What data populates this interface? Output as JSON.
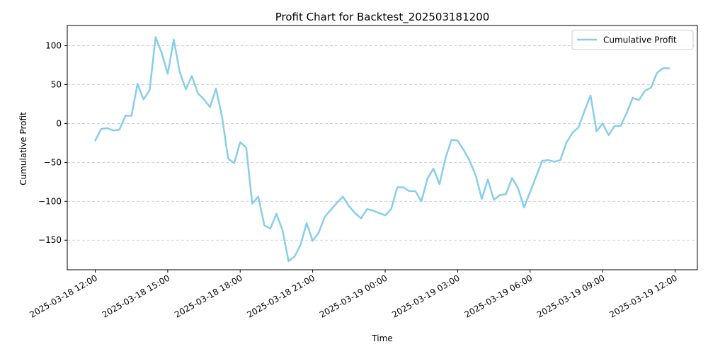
{
  "chart_data": {
    "type": "line",
    "title": "Profit Chart for Backtest_202503181200",
    "xlabel": "Time",
    "ylabel": "Cumulative Profit",
    "x_tick_labels": [
      "2025-03-18 12:00",
      "2025-03-18 15:00",
      "2025-03-18 18:00",
      "2025-03-18 21:00",
      "2025-03-19 00:00",
      "2025-03-19 03:00",
      "2025-03-19 06:00",
      "2025-03-19 09:00",
      "2025-03-19 12:00"
    ],
    "x_tick_hours": [
      0,
      3,
      6,
      9,
      12,
      15,
      18,
      21,
      24
    ],
    "y_ticks": [
      -150,
      -100,
      -50,
      0,
      50,
      100
    ],
    "y_tick_labels": [
      "−150",
      "−100",
      "−50",
      "0",
      "50",
      "100"
    ],
    "ylim": [
      -188,
      126
    ],
    "grid": "y-dashed",
    "legend_position": "top-right",
    "series": [
      {
        "name": "Cumulative Profit",
        "color": "#87CEEB",
        "x": [
          "2025-03-18 12:00",
          "2025-03-18 12:15",
          "2025-03-18 12:30",
          "2025-03-18 12:45",
          "2025-03-18 13:00",
          "2025-03-18 13:15",
          "2025-03-18 13:30",
          "2025-03-18 13:45",
          "2025-03-18 14:00",
          "2025-03-18 14:15",
          "2025-03-18 14:30",
          "2025-03-18 14:45",
          "2025-03-18 15:00",
          "2025-03-18 15:15",
          "2025-03-18 15:30",
          "2025-03-18 15:45",
          "2025-03-18 16:00",
          "2025-03-18 16:15",
          "2025-03-18 16:30",
          "2025-03-18 16:45",
          "2025-03-18 17:00",
          "2025-03-18 17:15",
          "2025-03-18 17:30",
          "2025-03-18 17:45",
          "2025-03-18 18:00",
          "2025-03-18 18:15",
          "2025-03-18 18:30",
          "2025-03-18 18:45",
          "2025-03-18 19:00",
          "2025-03-18 19:15",
          "2025-03-18 19:30",
          "2025-03-18 19:45",
          "2025-03-18 20:00",
          "2025-03-18 20:15",
          "2025-03-18 20:30",
          "2025-03-18 20:45",
          "2025-03-18 21:00",
          "2025-03-18 21:15",
          "2025-03-18 21:30",
          "2025-03-18 21:45",
          "2025-03-18 22:00",
          "2025-03-18 22:15",
          "2025-03-18 22:30",
          "2025-03-18 22:45",
          "2025-03-18 23:00",
          "2025-03-18 23:15",
          "2025-03-18 23:30",
          "2025-03-18 23:45",
          "2025-03-19 00:00",
          "2025-03-19 00:15",
          "2025-03-19 00:30",
          "2025-03-19 00:45",
          "2025-03-19 01:00",
          "2025-03-19 01:15",
          "2025-03-19 01:30",
          "2025-03-19 01:45",
          "2025-03-19 02:00",
          "2025-03-19 02:15",
          "2025-03-19 02:30",
          "2025-03-19 02:45",
          "2025-03-19 03:00",
          "2025-03-19 03:15",
          "2025-03-19 03:30",
          "2025-03-19 03:45",
          "2025-03-19 04:00",
          "2025-03-19 04:15",
          "2025-03-19 04:30",
          "2025-03-19 04:45",
          "2025-03-19 05:00",
          "2025-03-19 05:15",
          "2025-03-19 05:30",
          "2025-03-19 05:45",
          "2025-03-19 06:00",
          "2025-03-19 06:15",
          "2025-03-19 06:30",
          "2025-03-19 06:45",
          "2025-03-19 07:00",
          "2025-03-19 07:15",
          "2025-03-19 07:30",
          "2025-03-19 07:45",
          "2025-03-19 08:00",
          "2025-03-19 08:15",
          "2025-03-19 08:30",
          "2025-03-19 08:45",
          "2025-03-19 09:00",
          "2025-03-19 09:15",
          "2025-03-19 09:30",
          "2025-03-19 09:45",
          "2025-03-19 10:00",
          "2025-03-19 10:15",
          "2025-03-19 10:30",
          "2025-03-19 10:45",
          "2025-03-19 11:00",
          "2025-03-19 11:15",
          "2025-03-19 11:30",
          "2025-03-19 11:45"
        ],
        "y": [
          -22,
          -7,
          -6,
          -9,
          -8,
          10,
          10,
          51,
          31,
          43,
          111,
          91,
          64,
          108,
          66,
          44,
          61,
          39,
          31,
          21,
          45,
          8,
          -45,
          -51,
          -24,
          -31,
          -103,
          -94,
          -131,
          -135,
          -116,
          -137,
          -177,
          -171,
          -156,
          -128,
          -151,
          -140,
          -120,
          -111,
          -102,
          -94,
          -106,
          -115,
          -122,
          -110,
          -112,
          -115,
          -118,
          -110,
          -82,
          -82,
          -87,
          -87,
          -100,
          -71,
          -58,
          -78,
          -44,
          -21,
          -22,
          -34,
          -48,
          -67,
          -97,
          -72,
          -98,
          -92,
          -91,
          -70,
          -83,
          -108,
          -88,
          -68,
          -48,
          -47,
          -49,
          -47,
          -25,
          -12,
          -5,
          16,
          36,
          -10,
          0,
          -15,
          -3,
          -3,
          14,
          33,
          30,
          42,
          46,
          65,
          71,
          71
        ]
      }
    ]
  }
}
